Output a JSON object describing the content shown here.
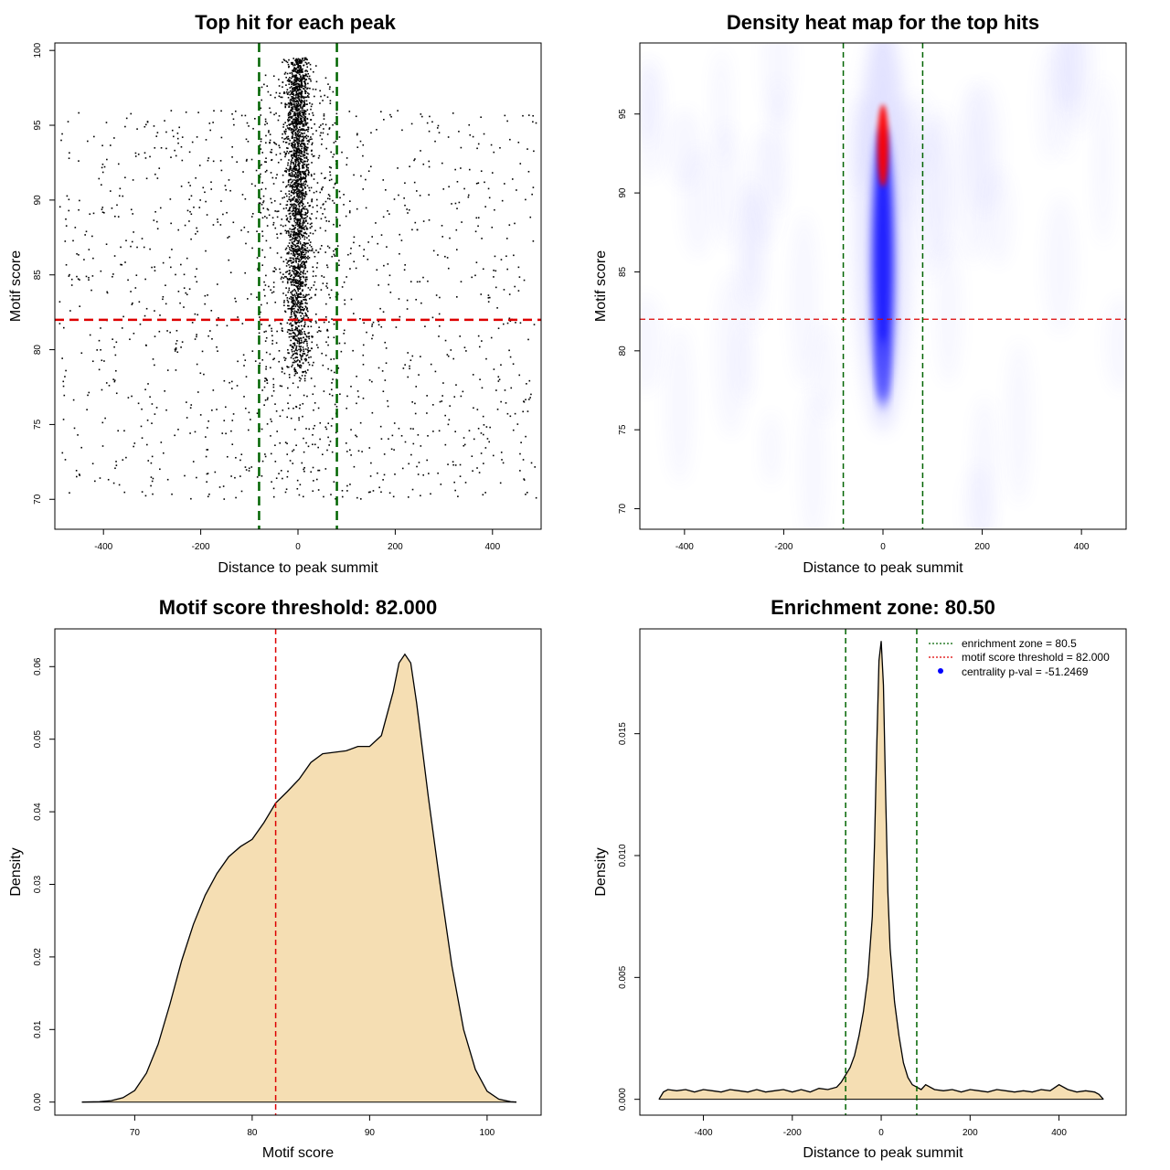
{
  "chart_data": [
    {
      "type": "scatter",
      "title": "Top hit for each peak",
      "xlabel": "Distance to peak summit",
      "ylabel": "Motif score",
      "xlim": [
        -500,
        500
      ],
      "ylim": [
        68,
        100.5
      ],
      "xticks": [
        -400,
        -200,
        0,
        200,
        400
      ],
      "yticks": [
        70,
        75,
        80,
        85,
        90,
        95,
        100
      ],
      "hline": {
        "y": 82,
        "color": "#dd0000"
      },
      "vlines": [
        {
          "x": -80,
          "color": "#006400"
        },
        {
          "x": 80,
          "color": "#006400"
        }
      ],
      "points": {
        "central": {
          "x_center": 0,
          "x_spread": 12,
          "y_range": [
            78,
            99.5
          ],
          "n": 2200
        },
        "wider_central": {
          "x_range": [
            -80,
            80
          ],
          "y_range": [
            71,
            98.5
          ],
          "n": 500
        },
        "background": {
          "x_range": [
            -490,
            490
          ],
          "y_range": [
            70,
            96
          ],
          "n": 1200
        }
      },
      "grid": false
    },
    {
      "type": "heatmap",
      "title": "Density heat map for the top hits",
      "xlabel": "Distance to peak summit",
      "ylabel": "Motif score",
      "xlim": [
        -490,
        490
      ],
      "ylim": [
        68.7,
        99.5
      ],
      "xticks": [
        -400,
        -200,
        0,
        200,
        400
      ],
      "yticks": [
        70,
        75,
        80,
        85,
        90,
        95
      ],
      "hline": {
        "y": 82,
        "color": "#dd0000"
      },
      "vlines": [
        {
          "x": -80,
          "color": "#006400"
        },
        {
          "x": 80,
          "color": "#006400"
        }
      ],
      "hotspot": {
        "x": 0,
        "y_peak": 93,
        "y_range": [
          76,
          99.5
        ]
      },
      "colors": [
        "#ffffff",
        "#0000ff",
        "#ff0000"
      ]
    },
    {
      "type": "area",
      "title": "Motif score threshold: 82.000",
      "xlabel": "Motif score",
      "ylabel": "Density",
      "xlim": [
        63.2,
        104.6
      ],
      "ylim": [
        -0.0018,
        0.0652
      ],
      "xticks": [
        70,
        80,
        90,
        100
      ],
      "yticks": [
        0,
        0.01,
        0.02,
        0.03,
        0.04,
        0.05,
        0.06
      ],
      "ytick_labels": [
        "0.00",
        "0.01",
        "0.02",
        "0.03",
        "0.04",
        "0.05",
        "0.06"
      ],
      "vline": {
        "x": 82,
        "color": "#dd0000"
      },
      "fill": "#f5deb3",
      "x": [
        65.5,
        67,
        68,
        69,
        70,
        71,
        72,
        73,
        74,
        75,
        76,
        77,
        78,
        79,
        80,
        81,
        82,
        83,
        84,
        85,
        86,
        87,
        88,
        89,
        90,
        91,
        92,
        92.5,
        93,
        93.5,
        94,
        95,
        96,
        97,
        98,
        99,
        100,
        101,
        102,
        102.5
      ],
      "y": [
        0,
        5e-05,
        0.0002,
        0.0006,
        0.0016,
        0.004,
        0.008,
        0.0135,
        0.0195,
        0.0245,
        0.0285,
        0.0315,
        0.0338,
        0.0352,
        0.0362,
        0.0385,
        0.0412,
        0.0428,
        0.0445,
        0.0468,
        0.048,
        0.0482,
        0.0484,
        0.049,
        0.049,
        0.0505,
        0.0565,
        0.0605,
        0.0617,
        0.0605,
        0.055,
        0.042,
        0.03,
        0.0188,
        0.01,
        0.0045,
        0.0015,
        0.0004,
        5e-05,
        0
      ]
    },
    {
      "type": "area",
      "title": "Enrichment zone: 80.50",
      "xlabel": "Distance to peak summit",
      "ylabel": "Density",
      "xlim": [
        -543,
        551
      ],
      "ylim": [
        -0.00065,
        0.0193
      ],
      "xticks": [
        -400,
        -200,
        0,
        200,
        400
      ],
      "yticks": [
        0,
        0.005,
        0.01,
        0.015
      ],
      "ytick_labels": [
        "0.000",
        "0.005",
        "0.010",
        "0.015"
      ],
      "vlines": [
        {
          "x": -80,
          "color": "#006400"
        },
        {
          "x": 80,
          "color": "#006400"
        }
      ],
      "fill": "#f5deb3",
      "x": [
        -500,
        -490,
        -480,
        -460,
        -440,
        -420,
        -400,
        -380,
        -360,
        -340,
        -320,
        -300,
        -280,
        -260,
        -240,
        -220,
        -200,
        -180,
        -160,
        -140,
        -120,
        -100,
        -90,
        -80,
        -70,
        -60,
        -50,
        -40,
        -30,
        -20,
        -15,
        -10,
        -5,
        0,
        5,
        10,
        15,
        20,
        30,
        40,
        50,
        60,
        70,
        80,
        90,
        100,
        120,
        140,
        160,
        180,
        200,
        220,
        240,
        260,
        280,
        300,
        320,
        340,
        360,
        380,
        400,
        420,
        440,
        460,
        480,
        490,
        500
      ],
      "y": [
        0,
        0.0003,
        0.0004,
        0.00035,
        0.0004,
        0.0003,
        0.0004,
        0.00035,
        0.0003,
        0.0004,
        0.00035,
        0.0003,
        0.0004,
        0.0003,
        0.00035,
        0.0004,
        0.0003,
        0.0004,
        0.0003,
        0.00045,
        0.0004,
        0.0005,
        0.0007,
        0.001,
        0.0013,
        0.0018,
        0.0026,
        0.0036,
        0.005,
        0.0075,
        0.0105,
        0.0145,
        0.018,
        0.0188,
        0.017,
        0.0125,
        0.0085,
        0.0062,
        0.004,
        0.0026,
        0.0015,
        0.0009,
        0.0006,
        0.0005,
        0.0004,
        0.0006,
        0.0004,
        0.00035,
        0.0004,
        0.0003,
        0.0004,
        0.00035,
        0.0003,
        0.0004,
        0.00035,
        0.0003,
        0.00035,
        0.0003,
        0.0004,
        0.00035,
        0.0006,
        0.0004,
        0.0003,
        0.00035,
        0.0003,
        0.0002,
        0
      ],
      "legend": {
        "placement": "top-right",
        "entries": [
          {
            "label": "enrichment zone = 80.5",
            "color": "#006400",
            "style": "dotted-line"
          },
          {
            "label": "motif score threshold = 82.000",
            "color": "#dd0000",
            "style": "dotted-line"
          },
          {
            "label": "centrality p-val = -51.2469",
            "color": "#0000ff",
            "style": "point"
          }
        ]
      }
    }
  ]
}
